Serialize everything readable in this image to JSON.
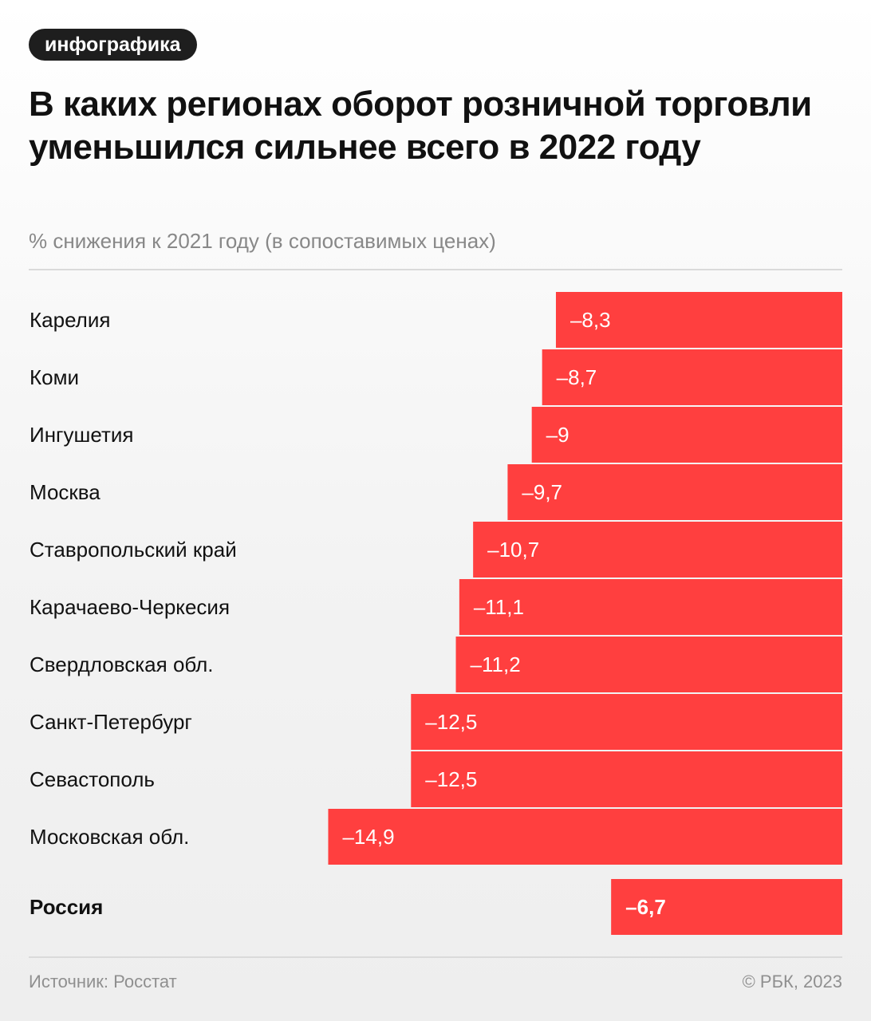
{
  "header": {
    "tag": "инфографика",
    "title": "В каких регионах оборот розничной торговли уменьшился сильнее всего в 2022 году",
    "subtitle": "% снижения к 2021 году (в сопоставимых ценах)"
  },
  "chart_data": {
    "type": "bar",
    "orientation": "horizontal",
    "title": "В каких регионах оборот розничной торговли уменьшился сильнее всего в 2022 году",
    "subtitle": "% снижения к 2021 году (в сопоставимых ценах)",
    "categories": [
      "Карелия",
      "Коми",
      "Ингушетия",
      "Москва",
      "Ставропольский край",
      "Карачаево-Черкесия",
      "Свердловская обл.",
      "Санкт-Петербург",
      "Севастополь",
      "Московская обл."
    ],
    "values": [
      -8.3,
      -8.7,
      -9,
      -9.7,
      -10.7,
      -11.1,
      -11.2,
      -12.5,
      -12.5,
      -14.9
    ],
    "value_labels": [
      "–8,3",
      "–8,7",
      "–9",
      "–9,7",
      "–10,7",
      "–11,1",
      "–11,2",
      "–12,5",
      "–12,5",
      "–14,9"
    ],
    "total": {
      "category": "Россия",
      "value": -6.7,
      "value_label": "–6,7"
    },
    "xlim": [
      -23.58,
      0
    ],
    "bar_color": "#ff3f3f",
    "grid": false,
    "legend": "none"
  },
  "footer": {
    "source": "Источник: Росстат",
    "copyright": "© РБК, 2023"
  }
}
